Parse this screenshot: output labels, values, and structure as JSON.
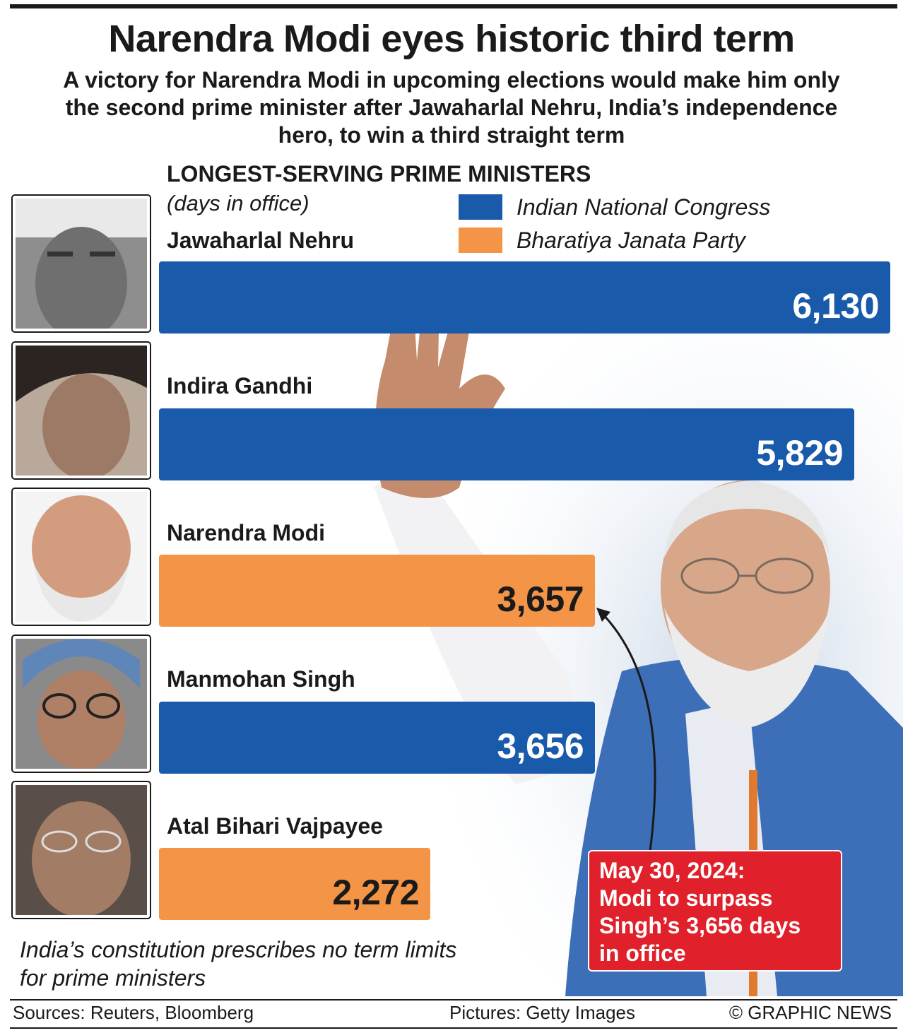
{
  "header": {
    "title": "Narendra Modi eyes historic third term",
    "subtitle": "A victory for Narendra Modi in upcoming elections would make him only the second prime minister after Jawaharlal Nehru, India’s independence hero, to win a third straight term"
  },
  "legend": [
    {
      "label": "Indian National Congress",
      "color": "#1a5aaa"
    },
    {
      "label": "Bharatiya Janata Party",
      "color": "#f39446"
    }
  ],
  "chart_data": {
    "type": "bar",
    "orientation": "horizontal",
    "title": "LONGEST-SERVING PRIME MINISTERS",
    "unit": "(days in office)",
    "categories": [
      "Jawaharlal Nehru",
      "Indira Gandhi",
      "Narendra Modi",
      "Manmohan Singh",
      "Atal Bihari Vajpayee"
    ],
    "values": [
      6130,
      5829,
      3657,
      3656,
      2272
    ],
    "value_labels": [
      "6,130",
      "5,829",
      "3,657",
      "3,656",
      "2,272"
    ],
    "party": [
      "Indian National Congress",
      "Indian National Congress",
      "Bharatiya Janata Party",
      "Indian National Congress",
      "Bharatiya Janata Party"
    ],
    "bar_colors": [
      "#1a5aaa",
      "#1a5aaa",
      "#f39446",
      "#1a5aaa",
      "#f39446"
    ],
    "label_colors": [
      "#ffffff",
      "#ffffff",
      "#1a1a1a",
      "#ffffff",
      "#1a1a1a"
    ],
    "xlim": [
      0,
      6130
    ],
    "grid": false,
    "legend_position": "top-right"
  },
  "callout": {
    "lines": [
      "May 30, 2024:",
      "Modi to surpass",
      "Singh’s 3,656 days",
      "in office"
    ]
  },
  "note": "India’s constitution prescribes no term limits for prime ministers",
  "footer": {
    "sources": "Sources: Reuters, Bloomberg",
    "pictures": "Pictures: Getty Images",
    "credit": "© GRAPHIC NEWS"
  }
}
